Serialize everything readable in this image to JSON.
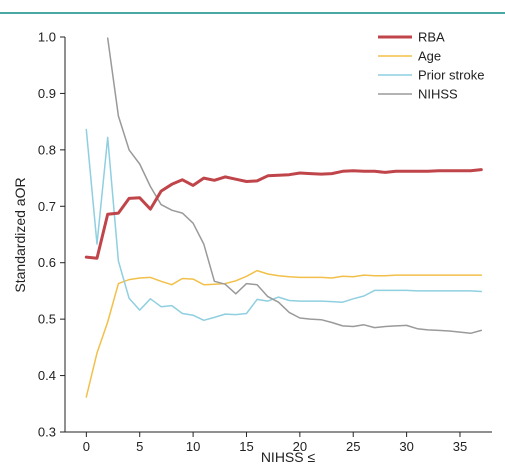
{
  "top_rule_color": "#4aa8a4",
  "chart_data": {
    "type": "line",
    "title": "",
    "xlabel": "NIHSS ≤",
    "ylabel": "Standardized aOR",
    "xlim": [
      -2,
      38
    ],
    "ylim": [
      0.3,
      1.0
    ],
    "x_ticks": [
      0,
      5,
      10,
      15,
      20,
      25,
      30,
      35
    ],
    "y_ticks": [
      0.3,
      0.4,
      0.5,
      0.6,
      0.7,
      0.8,
      0.9,
      1.0
    ],
    "grid": false,
    "legend_position": "top-right",
    "series": [
      {
        "name": "RBA",
        "color": "#c0454a",
        "width": 3,
        "x": [
          0,
          1,
          2,
          3,
          4,
          5,
          6,
          7,
          8,
          9,
          10,
          11,
          12,
          13,
          14,
          15,
          16,
          17,
          18,
          19,
          20,
          21,
          22,
          23,
          24,
          25,
          26,
          27,
          28,
          29,
          30,
          31,
          32,
          33,
          34,
          35,
          36,
          37
        ],
        "y": [
          0.61,
          0.608,
          0.686,
          0.688,
          0.714,
          0.715,
          0.695,
          0.727,
          0.739,
          0.747,
          0.737,
          0.75,
          0.746,
          0.752,
          0.748,
          0.744,
          0.745,
          0.754,
          0.755,
          0.756,
          0.759,
          0.758,
          0.757,
          0.758,
          0.762,
          0.763,
          0.762,
          0.762,
          0.76,
          0.762,
          0.762,
          0.762,
          0.762,
          0.763,
          0.763,
          0.763,
          0.763,
          0.765
        ]
      },
      {
        "name": "Age",
        "color": "#f2c04a",
        "width": 1.5,
        "x": [
          0,
          1,
          2,
          3,
          4,
          5,
          6,
          7,
          8,
          9,
          10,
          11,
          12,
          13,
          14,
          15,
          16,
          17,
          18,
          19,
          20,
          21,
          22,
          23,
          24,
          25,
          26,
          27,
          28,
          29,
          30,
          31,
          32,
          33,
          34,
          35,
          36,
          37
        ],
        "y": [
          0.362,
          0.44,
          0.495,
          0.563,
          0.57,
          0.573,
          0.574,
          0.567,
          0.561,
          0.572,
          0.571,
          0.561,
          0.562,
          0.563,
          0.568,
          0.576,
          0.586,
          0.58,
          0.577,
          0.575,
          0.574,
          0.574,
          0.574,
          0.573,
          0.576,
          0.575,
          0.578,
          0.577,
          0.577,
          0.578,
          0.578,
          0.578,
          0.578,
          0.578,
          0.578,
          0.578,
          0.578,
          0.578
        ]
      },
      {
        "name": "Prior stroke",
        "color": "#8fcfe0",
        "width": 1.5,
        "x": [
          0,
          1,
          2,
          3,
          4,
          5,
          6,
          7,
          8,
          9,
          10,
          11,
          12,
          13,
          14,
          15,
          16,
          17,
          18,
          19,
          20,
          21,
          22,
          23,
          24,
          25,
          26,
          27,
          28,
          29,
          30,
          31,
          32,
          33,
          34,
          35,
          36,
          37
        ],
        "y": [
          0.836,
          0.633,
          0.822,
          0.603,
          0.537,
          0.516,
          0.536,
          0.522,
          0.524,
          0.51,
          0.507,
          0.498,
          0.503,
          0.509,
          0.508,
          0.51,
          0.535,
          0.532,
          0.539,
          0.533,
          0.532,
          0.532,
          0.532,
          0.531,
          0.53,
          0.536,
          0.541,
          0.551,
          0.551,
          0.551,
          0.551,
          0.55,
          0.55,
          0.55,
          0.55,
          0.55,
          0.55,
          0.549
        ]
      },
      {
        "name": "NIHSS",
        "color": "#9a9a9a",
        "width": 1.5,
        "x": [
          2,
          3,
          4,
          5,
          6,
          7,
          8,
          9,
          10,
          11,
          12,
          13,
          14,
          15,
          16,
          17,
          18,
          19,
          20,
          21,
          22,
          23,
          24,
          25,
          26,
          27,
          28,
          29,
          30,
          31,
          32,
          33,
          34,
          35,
          36,
          37
        ],
        "y": [
          0.998,
          0.86,
          0.8,
          0.775,
          0.735,
          0.703,
          0.693,
          0.688,
          0.67,
          0.633,
          0.567,
          0.562,
          0.545,
          0.563,
          0.561,
          0.54,
          0.53,
          0.512,
          0.502,
          0.5,
          0.499,
          0.494,
          0.488,
          0.487,
          0.49,
          0.485,
          0.487,
          0.488,
          0.489,
          0.483,
          0.481,
          0.48,
          0.479,
          0.477,
          0.475,
          0.48
        ]
      }
    ]
  }
}
